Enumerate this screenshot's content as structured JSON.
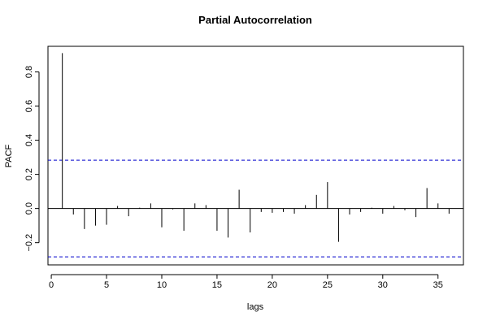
{
  "chart_data": {
    "type": "bar",
    "title": "Partial Autocorrelation",
    "xlabel": "lags",
    "ylabel": "PACF",
    "xlim": [
      -0.3,
      37.3
    ],
    "ylim": [
      -0.33,
      0.95
    ],
    "x_ticks": [
      0,
      5,
      10,
      15,
      20,
      25,
      30,
      35
    ],
    "x_tick_labels": [
      "0",
      "5",
      "10",
      "15",
      "20",
      "25",
      "30",
      "35"
    ],
    "y_ticks": [
      -0.2,
      0.0,
      0.2,
      0.4,
      0.6,
      0.8
    ],
    "y_tick_labels": [
      "−0.2",
      "0.0",
      "0.2",
      "0.4",
      "0.6",
      "0.8"
    ],
    "confidence_bounds": [
      0.283,
      -0.283
    ],
    "confidence_line_color": "#0000cc",
    "bar_color": "#000000",
    "series": [
      {
        "lags": [
          1,
          2,
          3,
          4,
          5,
          6,
          7,
          8,
          9,
          10,
          11,
          12,
          13,
          14,
          15,
          16,
          17,
          18,
          19,
          20,
          21,
          22,
          23,
          24,
          25,
          26,
          27,
          28,
          29,
          30,
          31,
          32,
          33,
          34,
          35,
          36
        ],
        "values": [
          0.91,
          -0.035,
          -0.12,
          -0.1,
          -0.095,
          0.015,
          -0.045,
          0.005,
          0.03,
          -0.11,
          -0.005,
          -0.13,
          0.03,
          0.02,
          -0.13,
          -0.17,
          0.11,
          -0.14,
          -0.02,
          -0.025,
          -0.02,
          -0.03,
          0.02,
          0.08,
          0.155,
          -0.195,
          -0.035,
          -0.02,
          0.005,
          -0.03,
          0.015,
          -0.01,
          -0.05,
          0.12,
          0.03,
          -0.03
        ]
      }
    ]
  }
}
